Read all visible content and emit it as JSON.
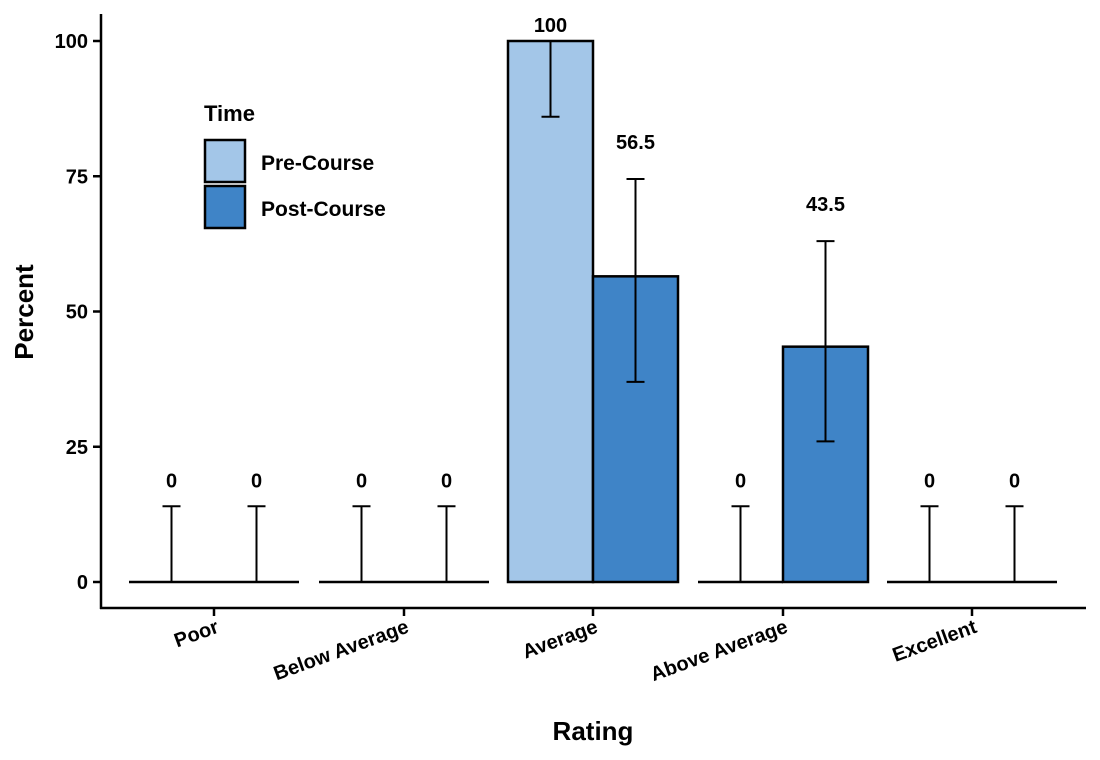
{
  "chart_data": {
    "type": "bar",
    "title": "",
    "xlabel": "Rating",
    "ylabel": "Percent",
    "ylim": [
      0,
      100
    ],
    "yticks": [
      0,
      25,
      50,
      75,
      100
    ],
    "categories": [
      "Poor",
      "Below Average",
      "Average",
      "Above Average",
      "Excellent"
    ],
    "legend": {
      "title": "Time",
      "position": "top-left"
    },
    "series": [
      {
        "name": "Pre-Course",
        "color": "#A3C6E8",
        "values": [
          0,
          0,
          100,
          0,
          0
        ],
        "labels": [
          "0",
          "0",
          "100",
          "0",
          "0"
        ],
        "error_low": [
          0,
          0,
          86,
          0,
          0
        ],
        "error_high": [
          14,
          14,
          100,
          14,
          14
        ]
      },
      {
        "name": "Post-Course",
        "color": "#3F84C7",
        "values": [
          0,
          0,
          56.5,
          43.5,
          0
        ],
        "labels": [
          "0",
          "0",
          "56.5",
          "43.5",
          "0"
        ],
        "error_low": [
          0,
          0,
          37,
          26,
          0
        ],
        "error_high": [
          14,
          14,
          74.5,
          63,
          14
        ]
      }
    ]
  }
}
